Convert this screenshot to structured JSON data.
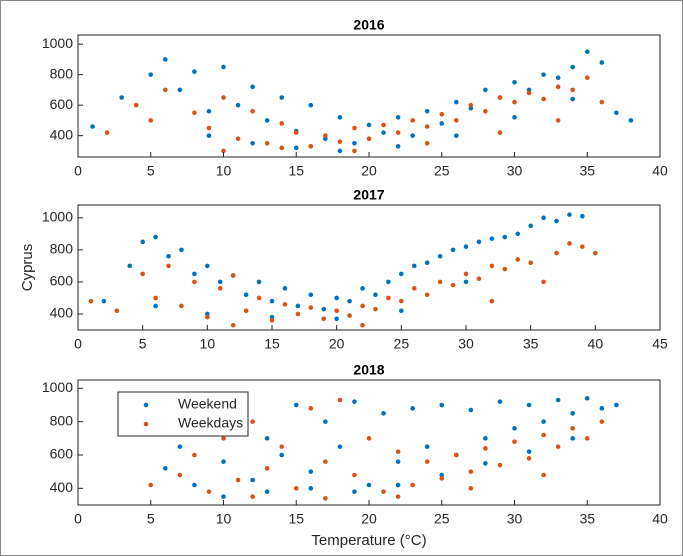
{
  "chart_data": [
    {
      "type": "scatter",
      "title": "2016",
      "xlim": [
        0,
        40
      ],
      "ylim": [
        260,
        1060
      ],
      "xticks": [
        0,
        5,
        10,
        15,
        20,
        25,
        30,
        35,
        40
      ],
      "yticks": [
        400,
        600,
        800,
        1000
      ],
      "series": [
        {
          "color": "#0072bd",
          "x": [
            1,
            3,
            5,
            6,
            7,
            8,
            9,
            10,
            11,
            12,
            13,
            14,
            15,
            16,
            17,
            18,
            19,
            20,
            21,
            22,
            23,
            24,
            25,
            26,
            27,
            28,
            29,
            30,
            31,
            32,
            33,
            34,
            35,
            36,
            37,
            38,
            9,
            12,
            15,
            18,
            22,
            26,
            30,
            34
          ],
          "values": [
            460,
            650,
            800,
            900,
            700,
            820,
            560,
            850,
            600,
            720,
            500,
            650,
            430,
            600,
            380,
            520,
            350,
            470,
            420,
            520,
            400,
            560,
            480,
            620,
            580,
            700,
            650,
            750,
            700,
            800,
            780,
            850,
            950,
            880,
            550,
            500,
            400,
            350,
            320,
            300,
            330,
            400,
            520,
            640
          ]
        },
        {
          "color": "#d95319",
          "x": [
            2,
            4,
            5,
            6,
            8,
            9,
            10,
            11,
            12,
            13,
            14,
            15,
            16,
            17,
            18,
            19,
            20,
            21,
            22,
            23,
            24,
            25,
            26,
            27,
            28,
            29,
            30,
            31,
            32,
            33,
            34,
            35,
            36,
            10,
            14,
            19,
            24,
            29,
            33
          ],
          "values": [
            420,
            600,
            500,
            700,
            550,
            450,
            650,
            380,
            560,
            350,
            480,
            420,
            330,
            400,
            360,
            450,
            380,
            470,
            420,
            500,
            460,
            540,
            500,
            600,
            560,
            650,
            620,
            680,
            640,
            720,
            700,
            780,
            620,
            300,
            320,
            300,
            350,
            420,
            500
          ]
        }
      ]
    },
    {
      "type": "scatter",
      "title": "2017",
      "ylabel": "Cyprus",
      "xlim": [
        0,
        45
      ],
      "ylim": [
        300,
        1080
      ],
      "xticks": [
        0,
        5,
        10,
        15,
        20,
        25,
        30,
        35,
        40,
        45
      ],
      "yticks": [
        400,
        600,
        800,
        1000
      ],
      "series": [
        {
          "color": "#0072bd",
          "x": [
            2,
            4,
            5,
            6,
            7,
            8,
            9,
            10,
            11,
            12,
            13,
            14,
            15,
            16,
            17,
            18,
            19,
            20,
            21,
            22,
            23,
            24,
            25,
            26,
            27,
            28,
            29,
            30,
            31,
            32,
            33,
            34,
            35,
            36,
            37,
            38,
            39,
            6,
            10,
            15,
            20,
            25,
            30
          ],
          "values": [
            480,
            700,
            850,
            880,
            760,
            800,
            650,
            700,
            600,
            640,
            520,
            600,
            480,
            560,
            450,
            520,
            430,
            500,
            480,
            560,
            520,
            600,
            650,
            700,
            720,
            760,
            800,
            820,
            850,
            870,
            880,
            900,
            950,
            1000,
            980,
            1020,
            1010,
            450,
            400,
            380,
            370,
            420,
            600
          ]
        },
        {
          "color": "#d95319",
          "x": [
            1,
            3,
            5,
            6,
            7,
            8,
            9,
            10,
            11,
            12,
            13,
            14,
            15,
            16,
            17,
            18,
            19,
            20,
            21,
            22,
            23,
            24,
            25,
            26,
            27,
            28,
            29,
            30,
            31,
            32,
            33,
            34,
            35,
            36,
            37,
            38,
            39,
            40,
            12,
            22,
            32
          ],
          "values": [
            480,
            420,
            650,
            500,
            700,
            450,
            600,
            380,
            560,
            640,
            420,
            500,
            360,
            460,
            400,
            440,
            370,
            420,
            390,
            450,
            430,
            500,
            480,
            560,
            520,
            600,
            580,
            650,
            620,
            700,
            680,
            740,
            720,
            600,
            780,
            840,
            820,
            780,
            330,
            330,
            480
          ]
        }
      ]
    },
    {
      "type": "scatter",
      "title": "2018",
      "xlabel": "Temperature (°C)",
      "legend": "upper left",
      "xlim": [
        0,
        40
      ],
      "ylim": [
        300,
        1050
      ],
      "xticks": [
        0,
        5,
        10,
        15,
        20,
        25,
        30,
        35,
        40
      ],
      "yticks": [
        400,
        600,
        800,
        1000
      ],
      "series": [
        {
          "name": "Weekend",
          "color": "#0072bd",
          "x": [
            6,
            7,
            8,
            9,
            10,
            11,
            12,
            13,
            14,
            15,
            16,
            17,
            18,
            19,
            20,
            21,
            22,
            23,
            24,
            25,
            26,
            27,
            28,
            29,
            30,
            31,
            32,
            33,
            34,
            35,
            36,
            37,
            10,
            13,
            16,
            19,
            22,
            25,
            28,
            31,
            34
          ],
          "values": [
            520,
            650,
            420,
            750,
            560,
            850,
            450,
            700,
            600,
            900,
            500,
            800,
            650,
            920,
            420,
            850,
            560,
            880,
            650,
            900,
            600,
            870,
            700,
            920,
            760,
            900,
            800,
            930,
            850,
            940,
            880,
            900,
            350,
            380,
            400,
            380,
            420,
            480,
            550,
            620,
            700
          ]
        },
        {
          "name": "Weekdays",
          "color": "#d95319",
          "x": [
            5,
            7,
            8,
            9,
            10,
            11,
            12,
            13,
            14,
            15,
            16,
            17,
            18,
            19,
            20,
            21,
            22,
            23,
            24,
            25,
            26,
            27,
            28,
            29,
            30,
            31,
            32,
            33,
            34,
            35,
            36,
            12,
            17,
            22,
            27,
            32
          ],
          "values": [
            420,
            480,
            600,
            380,
            700,
            450,
            800,
            520,
            650,
            400,
            880,
            560,
            930,
            480,
            700,
            380,
            620,
            420,
            560,
            460,
            600,
            500,
            640,
            540,
            680,
            580,
            720,
            650,
            760,
            700,
            800,
            350,
            340,
            350,
            400,
            480
          ]
        }
      ]
    }
  ]
}
